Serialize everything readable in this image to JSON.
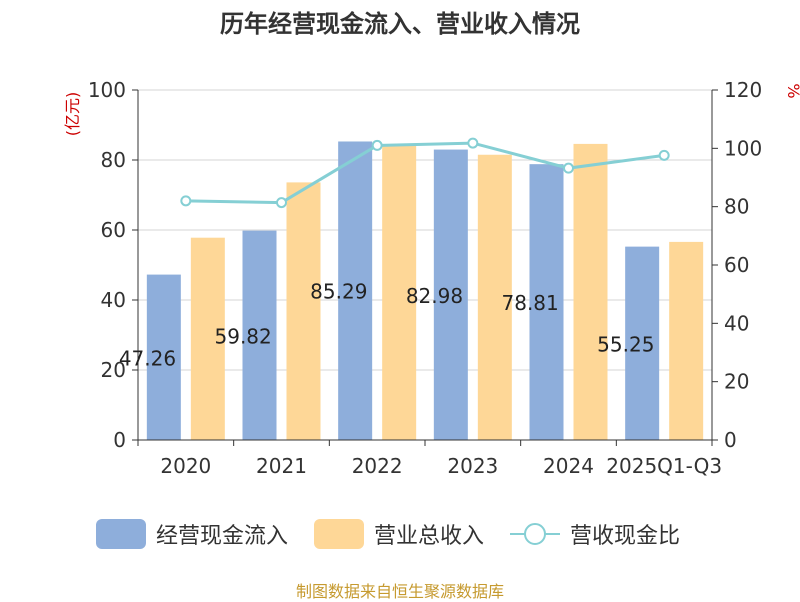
{
  "title": "历年经营现金流入、营业收入情况",
  "footer": "制图数据来自恒生聚源数据库",
  "colors": {
    "series1": "#8eaedb",
    "series2": "#fed797",
    "series3": "#85cfd4",
    "axis": "#333333",
    "grid": "#d6d6d6",
    "unit": "#cc0000"
  },
  "legend": [
    {
      "label": "经营现金流入",
      "kind": "bar",
      "color": "#8eaedb"
    },
    {
      "label": "营业总收入",
      "kind": "bar",
      "color": "#fed797"
    },
    {
      "label": "营收现金比",
      "kind": "line",
      "color": "#85cfd4"
    }
  ],
  "chart_data": {
    "type": "bar",
    "categories": [
      "2020",
      "2021",
      "2022",
      "2023",
      "2024",
      "2025Q1-Q3"
    ],
    "ylabel": "(亿元)",
    "y2label": "%",
    "ylim": [
      0,
      100
    ],
    "y2lim": [
      0,
      120
    ],
    "yticks": [
      0,
      20,
      40,
      60,
      80,
      100
    ],
    "y2ticks": [
      0,
      20,
      40,
      60,
      80,
      100,
      120
    ],
    "grid": true,
    "legend_position": "bottom",
    "series": [
      {
        "name": "经营现金流入",
        "type": "bar",
        "axis": "left",
        "values": [
          47.26,
          59.82,
          85.29,
          82.98,
          78.81,
          55.25
        ],
        "labels": [
          "47.26",
          "59.82",
          "85.29",
          "82.98",
          "78.81",
          "55.25"
        ]
      },
      {
        "name": "营业总收入",
        "type": "bar",
        "axis": "left",
        "values": [
          57.8,
          73.6,
          84.5,
          81.5,
          84.6,
          56.6
        ]
      },
      {
        "name": "营收现金比",
        "type": "line",
        "axis": "right",
        "values": [
          82,
          81.4,
          101,
          101.8,
          93.2,
          97.6
        ]
      }
    ]
  }
}
